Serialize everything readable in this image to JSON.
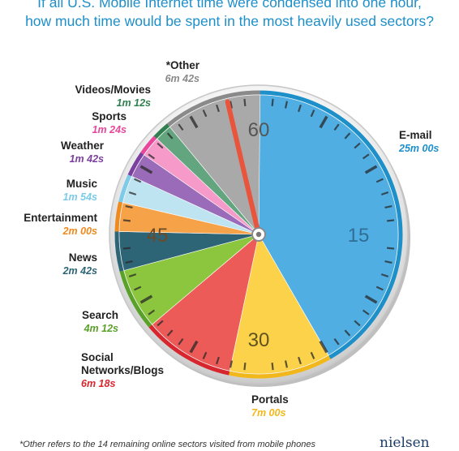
{
  "title_lines": [
    "If all U.S. Mobile Internet time were condensed into one hour,",
    "how much time  would be spent in the most heavily used sectors?"
  ],
  "footnote": "*Other refers to the 14 remaining online sectors visited from mobile phones",
  "brand": "nielsen",
  "chart_data": {
    "type": "pie",
    "title": "If all U.S. Mobile Internet time were condensed into one hour, how much time  would be spent in the most heavily used sectors?",
    "unit_note": "minutes of a 60-minute hour, drawn clockwise from 12 o'clock",
    "dial_labels": [
      "60",
      "15",
      "30",
      "45"
    ],
    "slices": [
      {
        "name": "E-mail",
        "time": "25m 00s",
        "minutes": 25.0,
        "color": "#50aee3",
        "text_color": "#1d8fc9"
      },
      {
        "name": "Portals",
        "time": "7m 00s",
        "minutes": 7.0,
        "color": "#fbd24a",
        "text_color": "#f2b81b"
      },
      {
        "name": "Social Networks/Blogs",
        "name_lines": [
          "Social",
          "Networks/Blogs"
        ],
        "time": "6m 18s",
        "minutes": 6.3,
        "color": "#ec5b58",
        "text_color": "#d8262f"
      },
      {
        "name": "Search",
        "time": "4m 12s",
        "minutes": 4.2,
        "color": "#8cc63f",
        "text_color": "#5aa12a"
      },
      {
        "name": "News",
        "time": "2m 42s",
        "minutes": 2.7,
        "color": "#2e6576",
        "text_color": "#2e6576"
      },
      {
        "name": "Entertainment",
        "time": "2m 00s",
        "minutes": 2.0,
        "color": "#f6a248",
        "text_color": "#ef8a1f"
      },
      {
        "name": "Music",
        "time": "1m 54s",
        "minutes": 1.9,
        "color": "#bfe4f1",
        "text_color": "#7ccbe8"
      },
      {
        "name": "Weather",
        "time": "1m 42s",
        "minutes": 1.7,
        "color": "#9a6bb8",
        "text_color": "#7b3fa0"
      },
      {
        "name": "Sports",
        "time": "1m 24s",
        "minutes": 1.4,
        "color": "#f59ac9",
        "text_color": "#e8479b"
      },
      {
        "name": "Videos/Movies",
        "time": "1m 12s",
        "minutes": 1.2,
        "color": "#63a57e",
        "text_color": "#2f7f4f"
      },
      {
        "name": "*Other",
        "time": "6m 42s",
        "minutes": 6.7,
        "color": "#a9a9a9",
        "text_color": "#8a8a8a"
      }
    ]
  }
}
